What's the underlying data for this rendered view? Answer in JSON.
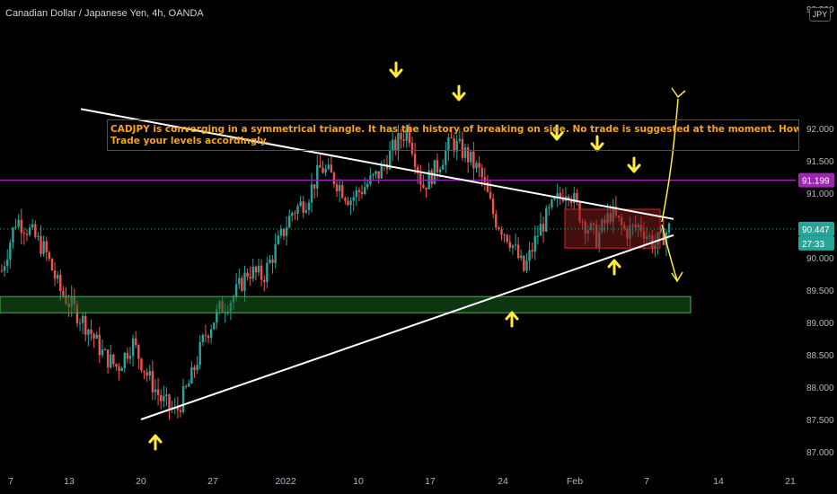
{
  "header": {
    "title": "Canadian Dollar / Japanese Yen, 4h, OANDA",
    "currency": "JPY"
  },
  "annotation": {
    "line1": "CADJPY is converging in a symmetrical triangle. It has the history of breaking on side. No trade is suggested at the moment. However, break of either side can",
    "line2": "Trade your levels accordingly."
  },
  "price_badges": {
    "level": "91.199",
    "last": "90.447",
    "countdown": "27:33"
  },
  "colors": {
    "up": "#26a69a",
    "down": "#ef5350",
    "level_line": "#9c27b0",
    "arrows": "#ffeb3b",
    "demand_zone": "#1b5e20",
    "range_box": "#7f1b1b"
  },
  "chart_data": {
    "type": "candlestick",
    "symbol": "CADJPY",
    "interval": "4h",
    "y_range": [
      86.9,
      92.55
    ],
    "y_ticks": [
      "92.500",
      "92.000",
      "91.500",
      "91.000",
      "90.500",
      "90.000",
      "89.500",
      "89.000",
      "88.500",
      "88.000",
      "87.500",
      "87.000"
    ],
    "x_ticks": [
      "7",
      "13",
      "20",
      "27",
      "2022",
      "3",
      "10",
      "17",
      "24",
      "Feb",
      "7",
      "14",
      "21"
    ],
    "horizontal_level": 91.199,
    "last_price": 90.447,
    "price_path": [
      89.8,
      90.6,
      90.4,
      90.1,
      89.5,
      89.2,
      88.9,
      88.5,
      88.3,
      88.7,
      88.2,
      87.8,
      87.6,
      88.1,
      88.8,
      89.2,
      89.4,
      89.8,
      89.7,
      90.2,
      90.7,
      90.9,
      91.4,
      91.2,
      90.9,
      91.1,
      91.3,
      91.7,
      92.0,
      91.1,
      91.4,
      91.8,
      91.6,
      91.3,
      90.6,
      90.3,
      89.8,
      90.4,
      90.8,
      91.1,
      90.6,
      90.3,
      90.7,
      90.4,
      90.5,
      90.2,
      90.45
    ],
    "triangle_upper": [
      [
        90.0,
        92.3
      ],
      [
        750.0,
        90.6
      ]
    ],
    "triangle_lower": [
      [
        157.0,
        87.5
      ],
      [
        750.0,
        90.35
      ]
    ],
    "demand_zone": [
      89.15,
      89.4
    ],
    "range_box": [
      90.15,
      90.75
    ]
  }
}
